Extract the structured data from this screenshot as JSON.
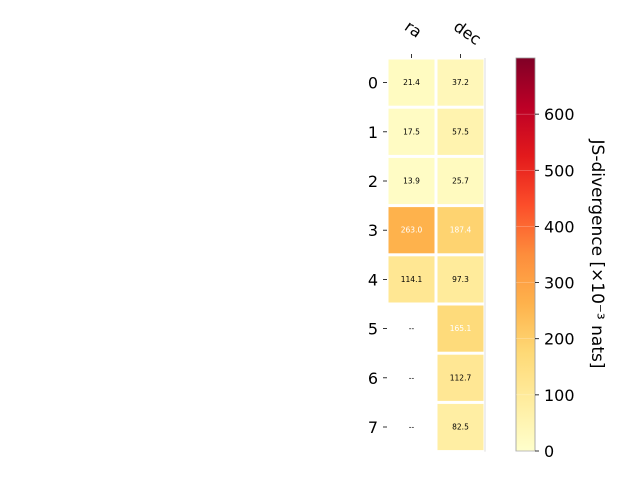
{
  "chart_data": {
    "type": "heatmap",
    "columns": [
      "ra",
      "dec"
    ],
    "rows": [
      "0",
      "1",
      "2",
      "3",
      "4",
      "5",
      "6",
      "7"
    ],
    "values": [
      [
        21.4,
        37.2
      ],
      [
        17.5,
        57.5
      ],
      [
        13.9,
        25.7
      ],
      [
        263.0,
        187.4
      ],
      [
        114.1,
        97.3
      ],
      [
        null,
        165.1
      ],
      [
        null,
        112.7
      ],
      [
        null,
        82.5
      ]
    ],
    "cell_labels": [
      [
        "21.4",
        "37.2"
      ],
      [
        "17.5",
        "57.5"
      ],
      [
        "13.9",
        "25.7"
      ],
      [
        "263.0",
        "187.4"
      ],
      [
        "114.1",
        "97.3"
      ],
      [
        "--",
        "165.1"
      ],
      [
        "--",
        "112.7"
      ],
      [
        "--",
        "82.5"
      ]
    ],
    "colorbar": {
      "label": "JS-divergence [×10⁻³ nats]",
      "vmin": 0,
      "vmax": 700,
      "ticks": [
        0,
        100,
        200,
        300,
        400,
        500,
        600
      ],
      "colormap": "YlOrRd"
    }
  }
}
